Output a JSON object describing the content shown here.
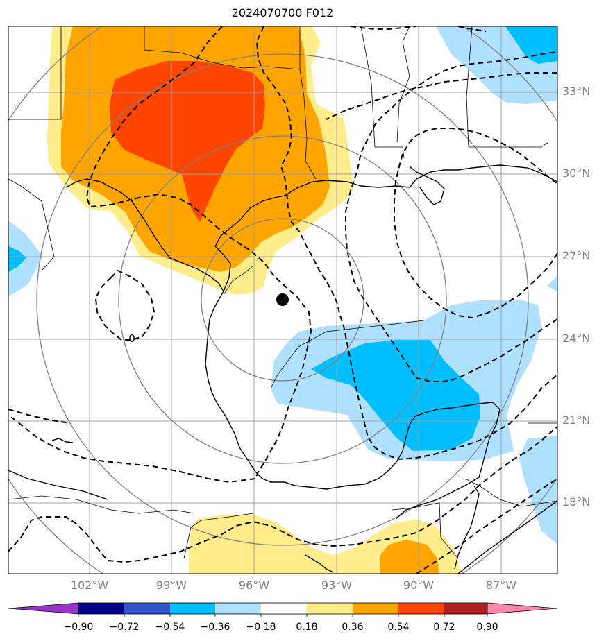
{
  "title": "2024070700 F012",
  "lat_labels": [
    "33°N",
    "30°N",
    "27°N",
    "24°N",
    "21°N",
    "18°N"
  ],
  "lon_labels": [
    "102°W",
    "99°W",
    "96°W",
    "93°W",
    "90°W",
    "87°W"
  ],
  "colorbar": {
    "ticks": [
      "−0.90",
      "−0.72",
      "−0.54",
      "−0.36",
      "−0.18",
      "0.18",
      "0.36",
      "0.54",
      "0.72",
      "0.90"
    ],
    "colors": [
      "#9933cc",
      "#00008b",
      "#3355cc",
      "#00bfff",
      "#b0e0ff",
      "#ffffff",
      "#ffec8b",
      "#ffa500",
      "#ff4500",
      "#b22222",
      "#ff88aa"
    ]
  },
  "contour_label": "0",
  "marker": "storm-center"
}
